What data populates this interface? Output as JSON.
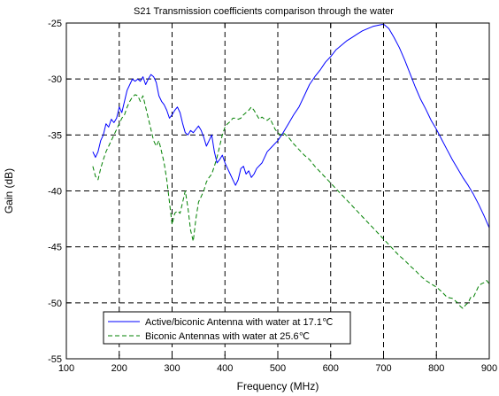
{
  "chart_data": {
    "type": "line",
    "title": "S21 Transmission coefficients comparison through the water",
    "xlabel": "Frequency (MHz)",
    "ylabel": "Gain (dB)",
    "xlim": [
      100,
      900
    ],
    "ylim": [
      -55,
      -25
    ],
    "xticks": [
      100,
      200,
      300,
      400,
      500,
      600,
      700,
      800,
      900
    ],
    "yticks": [
      -55,
      -50,
      -45,
      -40,
      -35,
      -30,
      -25
    ],
    "grid": true,
    "legend_position": "bottom-left",
    "series": [
      {
        "name": "Active/biconic Antenna with water at 17.1℃",
        "color": "#0000ff",
        "style": "solid",
        "points": [
          [
            150,
            -36.5
          ],
          [
            155,
            -37.0
          ],
          [
            160,
            -36.5
          ],
          [
            165,
            -35.5
          ],
          [
            170,
            -35.0
          ],
          [
            175,
            -34.0
          ],
          [
            180,
            -34.3
          ],
          [
            185,
            -33.6
          ],
          [
            190,
            -33.9
          ],
          [
            195,
            -33.5
          ],
          [
            200,
            -32.5
          ],
          [
            205,
            -33.0
          ],
          [
            210,
            -32.0
          ],
          [
            215,
            -31.0
          ],
          [
            220,
            -30.5
          ],
          [
            225,
            -30.0
          ],
          [
            230,
            -30.2
          ],
          [
            235,
            -30.0
          ],
          [
            240,
            -30.2
          ],
          [
            245,
            -29.8
          ],
          [
            250,
            -30.5
          ],
          [
            255,
            -30.0
          ],
          [
            260,
            -29.6
          ],
          [
            265,
            -29.8
          ],
          [
            270,
            -30.3
          ],
          [
            275,
            -31.5
          ],
          [
            280,
            -32.0
          ],
          [
            285,
            -32.3
          ],
          [
            290,
            -32.8
          ],
          [
            295,
            -33.5
          ],
          [
            300,
            -33.2
          ],
          [
            305,
            -32.8
          ],
          [
            310,
            -32.5
          ],
          [
            315,
            -33.0
          ],
          [
            320,
            -34.0
          ],
          [
            325,
            -34.8
          ],
          [
            330,
            -35.0
          ],
          [
            335,
            -34.6
          ],
          [
            340,
            -34.8
          ],
          [
            345,
            -34.5
          ],
          [
            350,
            -34.2
          ],
          [
            355,
            -34.6
          ],
          [
            360,
            -35.2
          ],
          [
            365,
            -36.0
          ],
          [
            370,
            -35.5
          ],
          [
            375,
            -35.0
          ],
          [
            380,
            -36.5
          ],
          [
            385,
            -37.5
          ],
          [
            390,
            -37.2
          ],
          [
            395,
            -36.8
          ],
          [
            400,
            -37.5
          ],
          [
            405,
            -38.0
          ],
          [
            410,
            -38.5
          ],
          [
            415,
            -39.0
          ],
          [
            420,
            -39.5
          ],
          [
            425,
            -39.0
          ],
          [
            430,
            -38.0
          ],
          [
            435,
            -37.8
          ],
          [
            440,
            -38.5
          ],
          [
            445,
            -38.2
          ],
          [
            450,
            -38.8
          ],
          [
            455,
            -38.5
          ],
          [
            460,
            -38.0
          ],
          [
            470,
            -37.5
          ],
          [
            480,
            -36.5
          ],
          [
            490,
            -36.0
          ],
          [
            500,
            -35.5
          ],
          [
            510,
            -34.8
          ],
          [
            520,
            -34.0
          ],
          [
            530,
            -33.2
          ],
          [
            540,
            -32.5
          ],
          [
            550,
            -31.5
          ],
          [
            560,
            -30.5
          ],
          [
            570,
            -29.8
          ],
          [
            580,
            -29.2
          ],
          [
            590,
            -28.5
          ],
          [
            600,
            -28.0
          ],
          [
            610,
            -27.4
          ],
          [
            620,
            -27.0
          ],
          [
            630,
            -26.6
          ],
          [
            640,
            -26.3
          ],
          [
            650,
            -26.0
          ],
          [
            660,
            -25.7
          ],
          [
            670,
            -25.5
          ],
          [
            680,
            -25.3
          ],
          [
            690,
            -25.2
          ],
          [
            700,
            -25.1
          ],
          [
            710,
            -25.5
          ],
          [
            720,
            -26.3
          ],
          [
            730,
            -27.2
          ],
          [
            740,
            -28.3
          ],
          [
            750,
            -29.5
          ],
          [
            760,
            -30.7
          ],
          [
            770,
            -31.8
          ],
          [
            780,
            -32.7
          ],
          [
            790,
            -33.7
          ],
          [
            800,
            -34.5
          ],
          [
            810,
            -35.4
          ],
          [
            820,
            -36.3
          ],
          [
            830,
            -37.2
          ],
          [
            840,
            -38.0
          ],
          [
            850,
            -38.8
          ],
          [
            860,
            -39.5
          ],
          [
            870,
            -40.3
          ],
          [
            880,
            -41.2
          ],
          [
            890,
            -42.2
          ],
          [
            900,
            -43.3
          ]
        ]
      },
      {
        "name": "Biconic Antennas with water at 25.6℃",
        "color": "#008000",
        "style": "dashed",
        "points": [
          [
            150,
            -37.8
          ],
          [
            155,
            -38.7
          ],
          [
            160,
            -39.0
          ],
          [
            165,
            -38.0
          ],
          [
            170,
            -37.2
          ],
          [
            175,
            -36.5
          ],
          [
            180,
            -36.0
          ],
          [
            185,
            -35.5
          ],
          [
            190,
            -35.0
          ],
          [
            195,
            -34.5
          ],
          [
            200,
            -34.0
          ],
          [
            205,
            -33.5
          ],
          [
            210,
            -33.2
          ],
          [
            215,
            -32.5
          ],
          [
            220,
            -32.0
          ],
          [
            225,
            -31.6
          ],
          [
            230,
            -31.4
          ],
          [
            235,
            -31.5
          ],
          [
            240,
            -32.0
          ],
          [
            245,
            -31.5
          ],
          [
            250,
            -32.5
          ],
          [
            255,
            -33.5
          ],
          [
            260,
            -34.5
          ],
          [
            265,
            -35.5
          ],
          [
            270,
            -36.0
          ],
          [
            275,
            -35.5
          ],
          [
            280,
            -36.5
          ],
          [
            285,
            -37.5
          ],
          [
            290,
            -39.0
          ],
          [
            295,
            -41.0
          ],
          [
            300,
            -43.0
          ],
          [
            305,
            -42.0
          ],
          [
            310,
            -41.8
          ],
          [
            315,
            -42.0
          ],
          [
            320,
            -41.0
          ],
          [
            325,
            -40.0
          ],
          [
            330,
            -41.5
          ],
          [
            335,
            -43.5
          ],
          [
            340,
            -44.5
          ],
          [
            345,
            -42.5
          ],
          [
            350,
            -41.0
          ],
          [
            355,
            -40.5
          ],
          [
            360,
            -40.0
          ],
          [
            365,
            -39.2
          ],
          [
            370,
            -38.8
          ],
          [
            375,
            -38.5
          ],
          [
            380,
            -37.8
          ],
          [
            385,
            -37.0
          ],
          [
            390,
            -36.0
          ],
          [
            395,
            -35.0
          ],
          [
            400,
            -34.3
          ],
          [
            405,
            -34.0
          ],
          [
            410,
            -33.8
          ],
          [
            415,
            -33.5
          ],
          [
            420,
            -33.5
          ],
          [
            425,
            -33.6
          ],
          [
            430,
            -33.5
          ],
          [
            435,
            -33.2
          ],
          [
            440,
            -33.0
          ],
          [
            445,
            -32.8
          ],
          [
            450,
            -32.5
          ],
          [
            455,
            -32.8
          ],
          [
            460,
            -33.2
          ],
          [
            465,
            -33.6
          ],
          [
            470,
            -33.4
          ],
          [
            475,
            -33.6
          ],
          [
            480,
            -33.7
          ],
          [
            485,
            -33.5
          ],
          [
            490,
            -34.0
          ],
          [
            495,
            -34.5
          ],
          [
            500,
            -34.8
          ],
          [
            505,
            -35.0
          ],
          [
            510,
            -34.8
          ],
          [
            520,
            -35.2
          ],
          [
            530,
            -35.8
          ],
          [
            540,
            -36.3
          ],
          [
            550,
            -36.8
          ],
          [
            560,
            -37.2
          ],
          [
            570,
            -37.8
          ],
          [
            580,
            -38.3
          ],
          [
            590,
            -38.8
          ],
          [
            600,
            -39.3
          ],
          [
            610,
            -39.8
          ],
          [
            620,
            -40.3
          ],
          [
            630,
            -40.8
          ],
          [
            640,
            -41.3
          ],
          [
            650,
            -41.8
          ],
          [
            660,
            -42.3
          ],
          [
            670,
            -42.8
          ],
          [
            680,
            -43.3
          ],
          [
            690,
            -43.8
          ],
          [
            700,
            -44.3
          ],
          [
            710,
            -44.8
          ],
          [
            720,
            -45.3
          ],
          [
            730,
            -45.8
          ],
          [
            740,
            -46.2
          ],
          [
            750,
            -46.7
          ],
          [
            760,
            -47.1
          ],
          [
            770,
            -47.6
          ],
          [
            780,
            -48.0
          ],
          [
            790,
            -48.3
          ],
          [
            800,
            -48.6
          ],
          [
            810,
            -49.0
          ],
          [
            820,
            -49.5
          ],
          [
            830,
            -49.6
          ],
          [
            840,
            -50.0
          ],
          [
            845,
            -50.3
          ],
          [
            850,
            -50.5
          ],
          [
            855,
            -50.2
          ],
          [
            860,
            -50.0
          ],
          [
            865,
            -49.5
          ],
          [
            870,
            -49.5
          ],
          [
            875,
            -49.0
          ],
          [
            880,
            -48.5
          ],
          [
            885,
            -48.3
          ],
          [
            890,
            -48.2
          ],
          [
            895,
            -48.0
          ],
          [
            900,
            -48.3
          ]
        ]
      }
    ]
  }
}
